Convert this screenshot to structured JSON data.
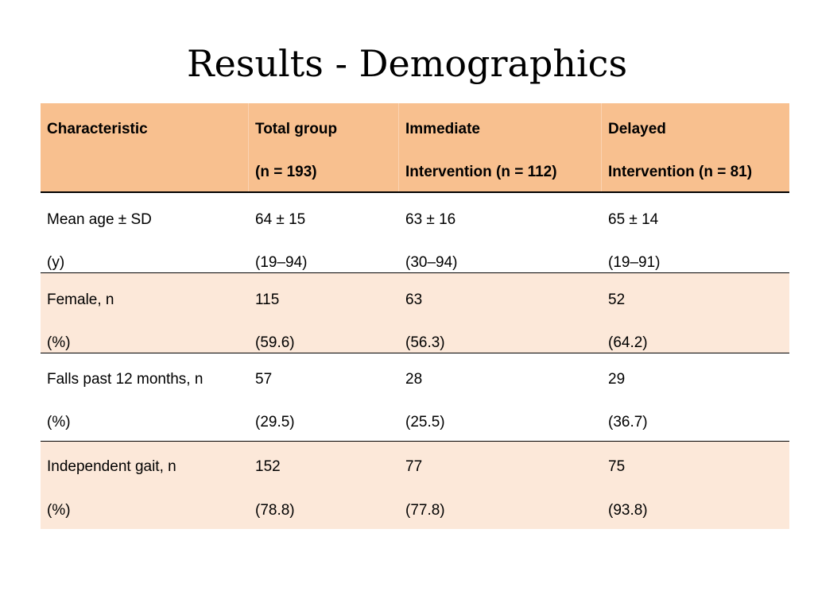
{
  "title": "Results - Demographics",
  "table": {
    "headers": [
      {
        "line1": "Characteristic",
        "line2": ""
      },
      {
        "line1": "Total group",
        "line2": "(n = 193)"
      },
      {
        "line1": "Immediate",
        "line2": "Intervention (n = 112)"
      },
      {
        "line1": "Delayed",
        "line2": "Intervention (n = 81)"
      }
    ],
    "rows": [
      {
        "cells": [
          {
            "line1": "Mean age ± SD",
            "line2": "(y)"
          },
          {
            "line1": "64 ± 15",
            "line2": "(19–94)"
          },
          {
            "line1": "63 ± 16",
            "line2": "(30–94)"
          },
          {
            "line1": "65 ± 14",
            "line2": "(19–91)"
          }
        ]
      },
      {
        "cells": [
          {
            "line1": "Female, n",
            "line2": "(%)"
          },
          {
            "line1": "115",
            "line2": "(59.6)"
          },
          {
            "line1": "63",
            "line2": "(56.3)"
          },
          {
            "line1": "52",
            "line2": "(64.2)"
          }
        ]
      },
      {
        "cells": [
          {
            "line1": "Falls past 12 months, n",
            "line2": "(%)"
          },
          {
            "line1": "57",
            "line2": "(29.5)"
          },
          {
            "line1": "28",
            "line2": "(25.5)"
          },
          {
            "line1": "29",
            "line2": "(36.7)"
          }
        ]
      },
      {
        "cells": [
          {
            "line1": "Independent gait, n",
            "line2": "(%)"
          },
          {
            "line1": "152",
            "line2": "(78.8)"
          },
          {
            "line1": "77",
            "line2": "(77.8)"
          },
          {
            "line1": "75",
            "line2": "(93.8)"
          }
        ]
      }
    ]
  },
  "colors": {
    "header_bg": "#f8c08f",
    "row_tint": "#fce8d9",
    "row_white": "#ffffff"
  }
}
